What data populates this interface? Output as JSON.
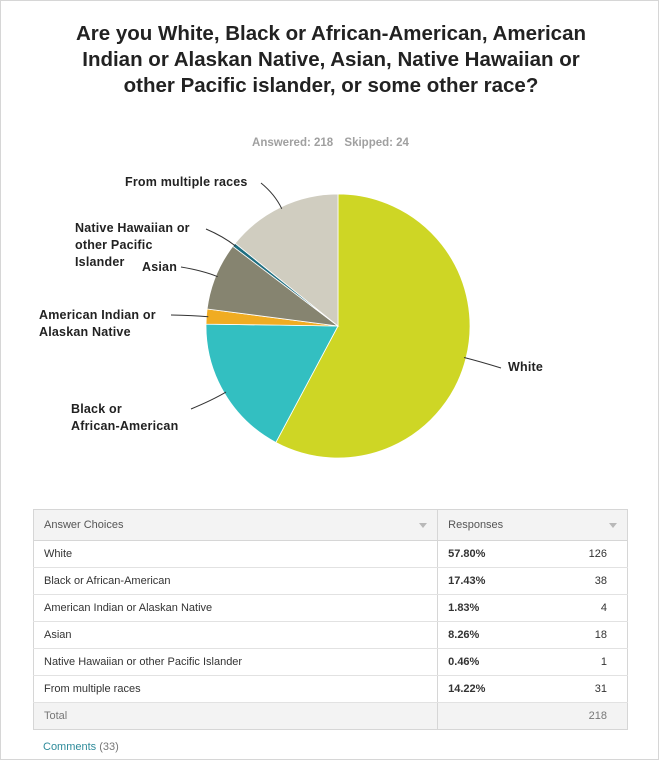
{
  "question": {
    "title": "Are you White, Black or African-American, American Indian or Alaskan Native, Asian, Native Hawaiian or other Pacific islander, or some other race?",
    "answered_label": "Answered: 218",
    "skipped_label": "Skipped: 24"
  },
  "chart_data": {
    "type": "pie",
    "categories": [
      "White",
      "Black or African-American",
      "American Indian or Alaskan Native",
      "Asian",
      "Native Hawaiian or other Pacific Islander",
      "From multiple races"
    ],
    "values": [
      57.8,
      17.43,
      1.83,
      8.26,
      0.46,
      14.22
    ],
    "colors": [
      "#ced625",
      "#33bfc1",
      "#f0ac22",
      "#868470",
      "#1e6e80",
      "#d0cdc0"
    ],
    "labels": [
      [
        "White"
      ],
      [
        "Black or",
        "African-American"
      ],
      [
        "American Indian or",
        "Alaskan Native"
      ],
      [
        "Asian"
      ],
      [
        "Native Hawaiian or",
        "other Pacific",
        "Islander"
      ],
      [
        "From multiple races"
      ]
    ]
  },
  "table": {
    "headers": {
      "choices": "Answer Choices",
      "responses": "Responses"
    },
    "rows": [
      {
        "choice": "White",
        "pct": "57.80%",
        "count": "126"
      },
      {
        "choice": "Black or African-American",
        "pct": "17.43%",
        "count": "38"
      },
      {
        "choice": "American Indian or Alaskan Native",
        "pct": "1.83%",
        "count": "4"
      },
      {
        "choice": "Asian",
        "pct": "8.26%",
        "count": "18"
      },
      {
        "choice": "Native Hawaiian or other Pacific Islander",
        "pct": "0.46%",
        "count": "1"
      },
      {
        "choice": "From multiple races",
        "pct": "14.22%",
        "count": "31"
      }
    ],
    "total": {
      "label": "Total",
      "count": "218"
    }
  },
  "comments": {
    "label": "Comments",
    "count": "(33)"
  }
}
